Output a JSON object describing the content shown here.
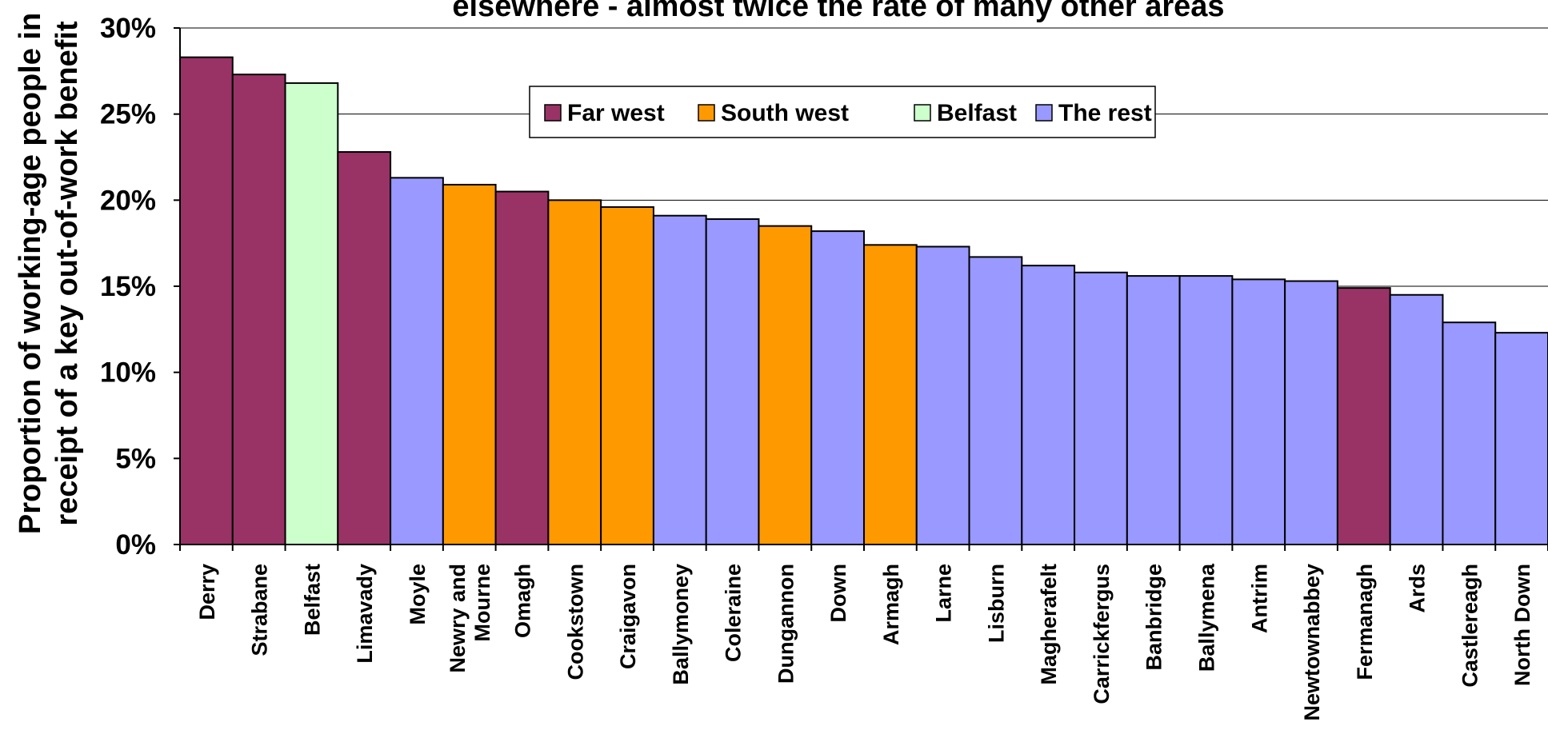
{
  "chart_data": {
    "type": "bar",
    "title": "elsewhere - almost twice the rate of many other areas",
    "xlabel": "",
    "ylabel": "Proportion of working-age people in receipt of a key out-of-work benefit",
    "ylabel_lines": [
      "Proportion of working-age people in",
      "receipt of a key out-of-work benefit"
    ],
    "ylim": [
      0,
      30
    ],
    "yticks": [
      "0%",
      "5%",
      "10%",
      "15%",
      "20%",
      "25%",
      "30%"
    ],
    "grid": true,
    "legend_position": "top-center",
    "legend": [
      {
        "name": "Far west",
        "color": "#993366"
      },
      {
        "name": "South west",
        "color": "#FF9900"
      },
      {
        "name": "Belfast",
        "color": "#CCFFCC"
      },
      {
        "name": "The rest",
        "color": "#9999FF"
      }
    ],
    "categories": [
      "Derry",
      "Strabane",
      "Belfast",
      "Limavady",
      "Moyle",
      "Newry and Mourne",
      "Omagh",
      "Cookstown",
      "Craigavon",
      "Ballymoney",
      "Coleraine",
      "Dungannon",
      "Down",
      "Armagh",
      "Larne",
      "Lisburn",
      "Magherafelt",
      "Carrickfergus",
      "Banbridge",
      "Ballymena",
      "Antrim",
      "Newtownabbey",
      "Fermanagh",
      "Ards",
      "Castlereagh",
      "North Down"
    ],
    "category_lines": [
      [
        "Derry"
      ],
      [
        "Strabane"
      ],
      [
        "Belfast"
      ],
      [
        "Limavady"
      ],
      [
        "Moyle"
      ],
      [
        "Newry and",
        "Mourne"
      ],
      [
        "Omagh"
      ],
      [
        "Cookstown"
      ],
      [
        "Craigavon"
      ],
      [
        "Ballymoney"
      ],
      [
        "Coleraine"
      ],
      [
        "Dungannon"
      ],
      [
        "Down"
      ],
      [
        "Armagh"
      ],
      [
        "Larne"
      ],
      [
        "Lisburn"
      ],
      [
        "Magherafelt"
      ],
      [
        "Carrickfergus"
      ],
      [
        "Banbridge"
      ],
      [
        "Ballymena"
      ],
      [
        "Antrim"
      ],
      [
        "Newtownabbey"
      ],
      [
        "Fermanagh"
      ],
      [
        "Ards"
      ],
      [
        "Castlereagh"
      ],
      [
        "North Down"
      ]
    ],
    "values": [
      28.3,
      27.3,
      26.8,
      22.8,
      21.3,
      20.9,
      20.5,
      20.0,
      19.6,
      19.1,
      18.9,
      18.5,
      18.2,
      17.4,
      17.3,
      16.7,
      16.2,
      15.8,
      15.6,
      15.6,
      15.4,
      15.3,
      14.9,
      14.5,
      12.9,
      12.3
    ],
    "groups": [
      "Far west",
      "Far west",
      "Belfast",
      "Far west",
      "The rest",
      "South west",
      "Far west",
      "South west",
      "South west",
      "The rest",
      "The rest",
      "South west",
      "The rest",
      "South west",
      "The rest",
      "The rest",
      "The rest",
      "The rest",
      "The rest",
      "The rest",
      "The rest",
      "The rest",
      "Far west",
      "The rest",
      "The rest",
      "The rest"
    ]
  }
}
